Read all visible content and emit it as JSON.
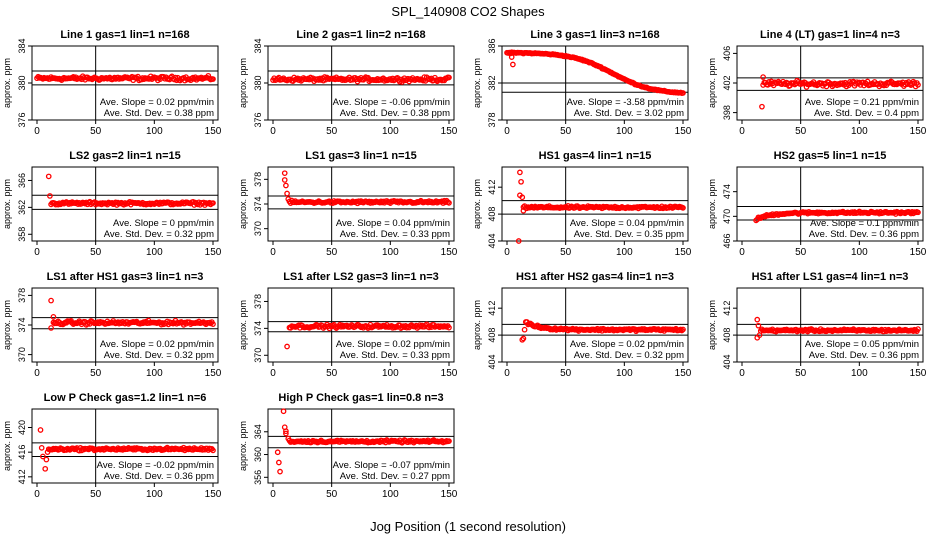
{
  "figure": {
    "title": "SPL_140908  CO2 Shapes",
    "xlabel": "Jog Position (1 second resolution)",
    "ylabel": "approx. ppm",
    "slope_prefix": "Ave. Slope = ",
    "slope_unit": " ppm/min",
    "std_prefix": "Ave. Std. Dev. = ",
    "std_unit": " ppm"
  },
  "colors": {
    "points": "#ff0000",
    "axes": "#000000",
    "background": "#ffffff"
  },
  "chart_data": [
    {
      "type": "scatter",
      "title": "Line 1 gas=1 lin=1 n=168",
      "xlim": [
        0,
        150
      ],
      "ylim": [
        376,
        384
      ],
      "yticks": [
        "376",
        "380",
        "384"
      ],
      "xticks": [
        "0",
        "50",
        "100",
        "150"
      ],
      "hlines": [
        381.3,
        379.8
      ],
      "vline": 50,
      "slope": "0.02",
      "std": "0.38",
      "shape": {
        "kind": "flat",
        "base": 380.5,
        "noise": 0.3,
        "start": 0
      }
    },
    {
      "type": "scatter",
      "title": "Line 2 gas=1 lin=2 n=168",
      "xlim": [
        0,
        150
      ],
      "ylim": [
        376,
        384
      ],
      "yticks": [
        "376",
        "380",
        "384"
      ],
      "xticks": [
        "0",
        "50",
        "100",
        "150"
      ],
      "hlines": [
        381.3,
        379.8
      ],
      "vline": 50,
      "slope": "-0.06",
      "std": "0.38",
      "shape": {
        "kind": "flat",
        "base": 380.4,
        "noise": 0.3,
        "start": 0
      }
    },
    {
      "type": "scatter",
      "title": "Line 3 gas=1 lin=3 n=168",
      "xlim": [
        0,
        150
      ],
      "ylim": [
        378,
        386
      ],
      "yticks": [
        "378",
        "382",
        "386"
      ],
      "xticks": [
        "0",
        "50",
        "100",
        "150"
      ],
      "hlines": [
        382.0,
        381.0
      ],
      "vline": 50,
      "slope": "-3.58",
      "std": "3.02",
      "shape": {
        "kind": "sigmoid",
        "high": 385.3,
        "low": 380.8,
        "center": 90,
        "width": 17,
        "start": 0,
        "outliers": [
          [
            5,
            384.0
          ],
          [
            4,
            384.8
          ],
          [
            3,
            385.2
          ]
        ]
      }
    },
    {
      "type": "scatter",
      "title": "Line 4 (LT) gas=1 lin=4 n=3",
      "xlim": [
        0,
        150
      ],
      "ylim": [
        397,
        407
      ],
      "yticks": [
        "398",
        "402",
        "406"
      ],
      "xticks": [
        "0",
        "50",
        "100",
        "150"
      ],
      "hlines": [
        402.7,
        401.0
      ],
      "vline": 50,
      "slope": "0.21",
      "std": "0.4",
      "shape": {
        "kind": "flat",
        "base": 401.9,
        "noise": 0.5,
        "start": 18,
        "outliers": [
          [
            17,
            398.8
          ],
          [
            18,
            402.8
          ]
        ]
      }
    },
    {
      "type": "scatter",
      "title": "LS2 gas=2 lin=1 n=15",
      "xlim": [
        0,
        150
      ],
      "ylim": [
        357,
        368
      ],
      "yticks": [
        "358",
        "362",
        "366"
      ],
      "xticks": [
        "0",
        "50",
        "100",
        "150"
      ],
      "hlines": [
        363.8,
        361.7
      ],
      "vline": 50,
      "slope": "0",
      "std": "0.32",
      "shape": {
        "kind": "flat",
        "base": 362.6,
        "noise": 0.3,
        "start": 12,
        "outliers": [
          [
            10,
            366.6
          ],
          [
            11,
            363.7
          ]
        ]
      }
    },
    {
      "type": "scatter",
      "title": "LS1 gas=3 lin=1 n=15",
      "xlim": [
        0,
        150
      ],
      "ylim": [
        368,
        380
      ],
      "yticks": [
        "370",
        "374",
        "378"
      ],
      "xticks": [
        "0",
        "50",
        "100",
        "150"
      ],
      "hlines": [
        375.3,
        373.2
      ],
      "vline": 50,
      "slope": "0.04",
      "std": "0.33",
      "shape": {
        "kind": "flat",
        "base": 374.3,
        "noise": 0.3,
        "start": 14,
        "outliers": [
          [
            10,
            379.0
          ],
          [
            10,
            377.9
          ],
          [
            11,
            377.0
          ],
          [
            12,
            375.7
          ],
          [
            13,
            374.8
          ]
        ]
      }
    },
    {
      "type": "scatter",
      "title": "HS1 gas=4 lin=1 n=15",
      "xlim": [
        0,
        150
      ],
      "ylim": [
        404,
        415
      ],
      "yticks": [
        "404",
        "408",
        "412"
      ],
      "xticks": [
        "0",
        "50",
        "100",
        "150"
      ],
      "hlines": [
        410.0,
        408.0
      ],
      "vline": 50,
      "slope": "0.04",
      "std": "0.35",
      "shape": {
        "kind": "flat",
        "base": 409.0,
        "noise": 0.25,
        "start": 14,
        "outliers": [
          [
            10,
            404.0
          ],
          [
            11,
            414.2
          ],
          [
            12,
            412.8
          ],
          [
            11,
            410.8
          ],
          [
            13,
            410.5
          ],
          [
            14,
            408.5
          ]
        ]
      }
    },
    {
      "type": "scatter",
      "title": "HS2 gas=5 lin=1 n=15",
      "xlim": [
        0,
        150
      ],
      "ylim": [
        466,
        478
      ],
      "yticks": [
        "466",
        "470",
        "474"
      ],
      "xticks": [
        "0",
        "50",
        "100",
        "150"
      ],
      "hlines": [
        471.6,
        469.4
      ],
      "vline": 50,
      "slope": "0.1",
      "std": "0.36",
      "shape": {
        "kind": "recover",
        "base": 470.6,
        "dip": 469.5,
        "tau": 12,
        "noise": 0.25,
        "start": 12
      }
    },
    {
      "type": "scatter",
      "title": "LS1 after HS1 gas=3 lin=1 n=3",
      "xlim": [
        0,
        150
      ],
      "ylim": [
        369,
        379
      ],
      "yticks": [
        "370",
        "374",
        "378"
      ],
      "xticks": [
        "0",
        "50",
        "100",
        "150"
      ],
      "hlines": [
        375.0,
        373.5
      ],
      "vline": 50,
      "slope": "0.02",
      "std": "0.32",
      "shape": {
        "kind": "flat",
        "base": 374.3,
        "noise": 0.35,
        "start": 14,
        "outliers": [
          [
            12,
            377.3
          ],
          [
            12,
            373.6
          ],
          [
            14,
            375.1
          ]
        ]
      }
    },
    {
      "type": "scatter",
      "title": "LS1 after LS2 gas=3 lin=1 n=3",
      "xlim": [
        0,
        150
      ],
      "ylim": [
        369,
        380
      ],
      "yticks": [
        "370",
        "374",
        "378"
      ],
      "xticks": [
        "0",
        "50",
        "100",
        "150"
      ],
      "hlines": [
        375.0,
        373.5
      ],
      "vline": 50,
      "slope": "0.02",
      "std": "0.33",
      "shape": {
        "kind": "flat",
        "base": 374.3,
        "noise": 0.35,
        "start": 14,
        "outliers": [
          [
            12,
            371.3
          ]
        ]
      }
    },
    {
      "type": "scatter",
      "title": "HS1 after HS2 gas=4 lin=1 n=3",
      "xlim": [
        0,
        150
      ],
      "ylim": [
        404,
        415
      ],
      "yticks": [
        "404",
        "408",
        "412"
      ],
      "xticks": [
        "0",
        "50",
        "100",
        "150"
      ],
      "hlines": [
        409.6,
        408.0
      ],
      "vline": 50,
      "slope": "0.02",
      "std": "0.32",
      "shape": {
        "kind": "decay",
        "base": 408.8,
        "peak": 409.9,
        "tau": 12,
        "noise": 0.25,
        "start": 16,
        "outliers": [
          [
            13,
            407.3
          ],
          [
            14,
            407.5
          ],
          [
            15,
            408.8
          ]
        ]
      }
    },
    {
      "type": "scatter",
      "title": "HS1 after LS1 gas=4 lin=1 n=3",
      "xlim": [
        0,
        150
      ],
      "ylim": [
        404,
        415
      ],
      "yticks": [
        "404",
        "408",
        "412"
      ],
      "xticks": [
        "0",
        "50",
        "100",
        "150"
      ],
      "hlines": [
        409.6,
        408.0
      ],
      "vline": 50,
      "slope": "0.05",
      "std": "0.36",
      "shape": {
        "kind": "flat",
        "base": 408.7,
        "noise": 0.25,
        "start": 16,
        "outliers": [
          [
            13,
            410.3
          ],
          [
            14,
            409.4
          ],
          [
            13,
            407.6
          ],
          [
            15,
            408.0
          ]
        ]
      }
    },
    {
      "type": "scatter",
      "title": "Low P Check gas=1.2 lin=1 n=6",
      "xlim": [
        0,
        150
      ],
      "ylim": [
        411,
        423
      ],
      "yticks": [
        "412",
        "416",
        "420"
      ],
      "xticks": [
        "0",
        "50",
        "100",
        "150"
      ],
      "hlines": [
        417.5,
        415.3
      ],
      "vline": 50,
      "slope": "-0.02",
      "std": "0.36",
      "shape": {
        "kind": "flat",
        "base": 416.5,
        "noise": 0.3,
        "start": 10,
        "outliers": [
          [
            3,
            419.6
          ],
          [
            4,
            416.7
          ],
          [
            5,
            415.3
          ],
          [
            7,
            413.3
          ],
          [
            8,
            414.8
          ],
          [
            9,
            416.0
          ]
        ]
      }
    },
    {
      "type": "scatter",
      "title": "High P Check gas=1 lin=0.8 n=3",
      "xlim": [
        0,
        150
      ],
      "ylim": [
        355,
        368
      ],
      "yticks": [
        "356",
        "360",
        "364"
      ],
      "xticks": [
        "0",
        "50",
        "100",
        "150"
      ],
      "hlines": [
        363.2,
        361.2
      ],
      "vline": 50,
      "slope": "-0.07",
      "std": "0.27",
      "shape": {
        "kind": "flat",
        "base": 362.3,
        "noise": 0.3,
        "start": 14,
        "outliers": [
          [
            9,
            367.6
          ],
          [
            10,
            364.8
          ],
          [
            11,
            363.7
          ],
          [
            11,
            364.1
          ],
          [
            4,
            360.4
          ],
          [
            5,
            358.6
          ],
          [
            6,
            357.0
          ],
          [
            13,
            362.8
          ]
        ]
      }
    }
  ]
}
